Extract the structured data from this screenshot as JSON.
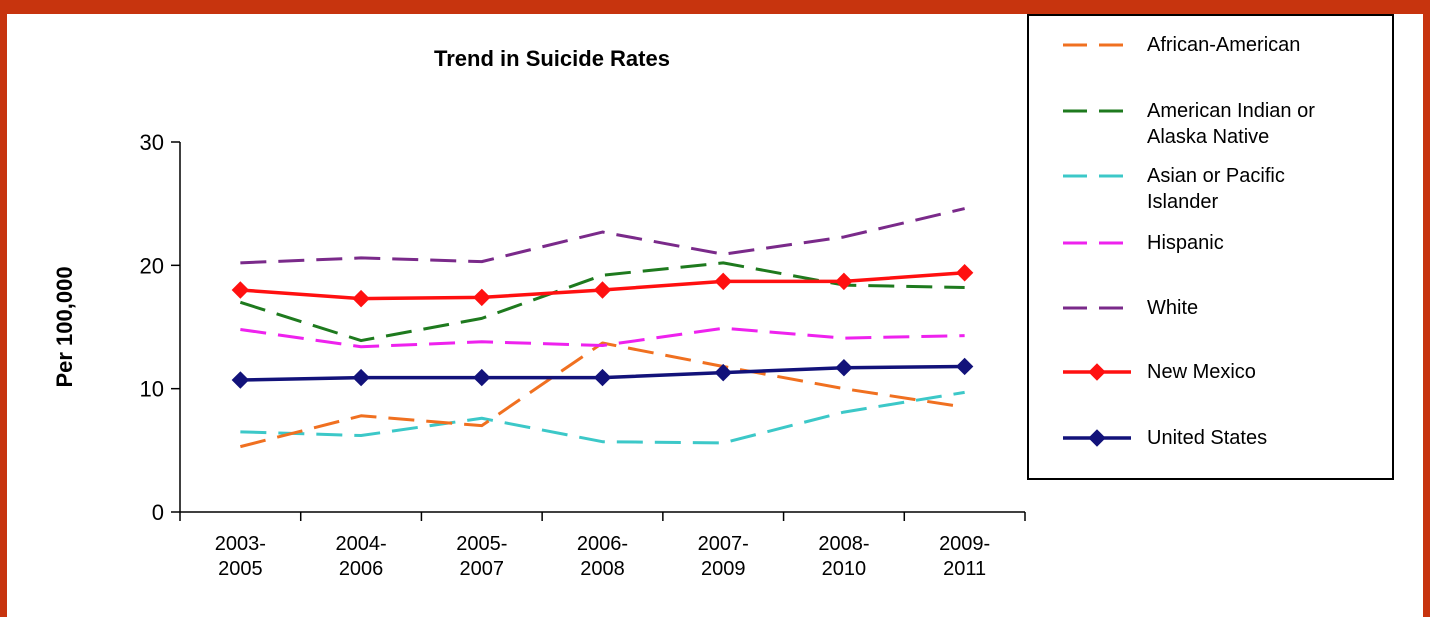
{
  "chart_data": {
    "type": "line",
    "title": "Trend in Suicide Rates",
    "xlabel": "",
    "ylabel": "Per 100,000",
    "ylim": [
      0,
      30
    ],
    "yticks": [
      0,
      10,
      20,
      30
    ],
    "grid": false,
    "legend_position": "right",
    "categories": [
      [
        "2003-",
        "2005"
      ],
      [
        "2004-",
        "2006"
      ],
      [
        "2005-",
        "2007"
      ],
      [
        "2006-",
        "2008"
      ],
      [
        "2007-",
        "2009"
      ],
      [
        "2008-",
        "2010"
      ],
      [
        "2009-",
        "2011"
      ]
    ],
    "series": [
      {
        "name": [
          "African-American"
        ],
        "color": "#f07020",
        "dash": true,
        "marker": false,
        "values": [
          5.3,
          7.8,
          7.0,
          13.7,
          11.8,
          10.0,
          8.5
        ]
      },
      {
        "name": [
          "American Indian or",
          "Alaska Native"
        ],
        "color": "#1e7a1e",
        "dash": true,
        "marker": false,
        "values": [
          17.0,
          13.9,
          15.7,
          19.2,
          20.2,
          18.4,
          18.2
        ]
      },
      {
        "name": [
          "Asian or Pacific",
          "Islander"
        ],
        "color": "#3cc8c8",
        "dash": true,
        "marker": false,
        "values": [
          6.5,
          6.2,
          7.6,
          5.7,
          5.6,
          8.1,
          9.7
        ]
      },
      {
        "name": [
          "Hispanic"
        ],
        "color": "#ee22ee",
        "dash": true,
        "marker": false,
        "values": [
          14.8,
          13.4,
          13.8,
          13.5,
          14.9,
          14.1,
          14.3
        ]
      },
      {
        "name": [
          "White"
        ],
        "color": "#7a2a8a",
        "dash": true,
        "marker": false,
        "values": [
          20.2,
          20.6,
          20.3,
          22.7,
          20.9,
          22.3,
          24.6
        ]
      },
      {
        "name": [
          "New Mexico"
        ],
        "color": "#ff1010",
        "dash": false,
        "marker": true,
        "values": [
          18.0,
          17.3,
          17.4,
          18.0,
          18.7,
          18.7,
          19.4
        ]
      },
      {
        "name": [
          "United States"
        ],
        "color": "#12127a",
        "dash": false,
        "marker": true,
        "values": [
          10.7,
          10.9,
          10.9,
          10.9,
          11.3,
          11.7,
          11.8
        ]
      }
    ]
  }
}
